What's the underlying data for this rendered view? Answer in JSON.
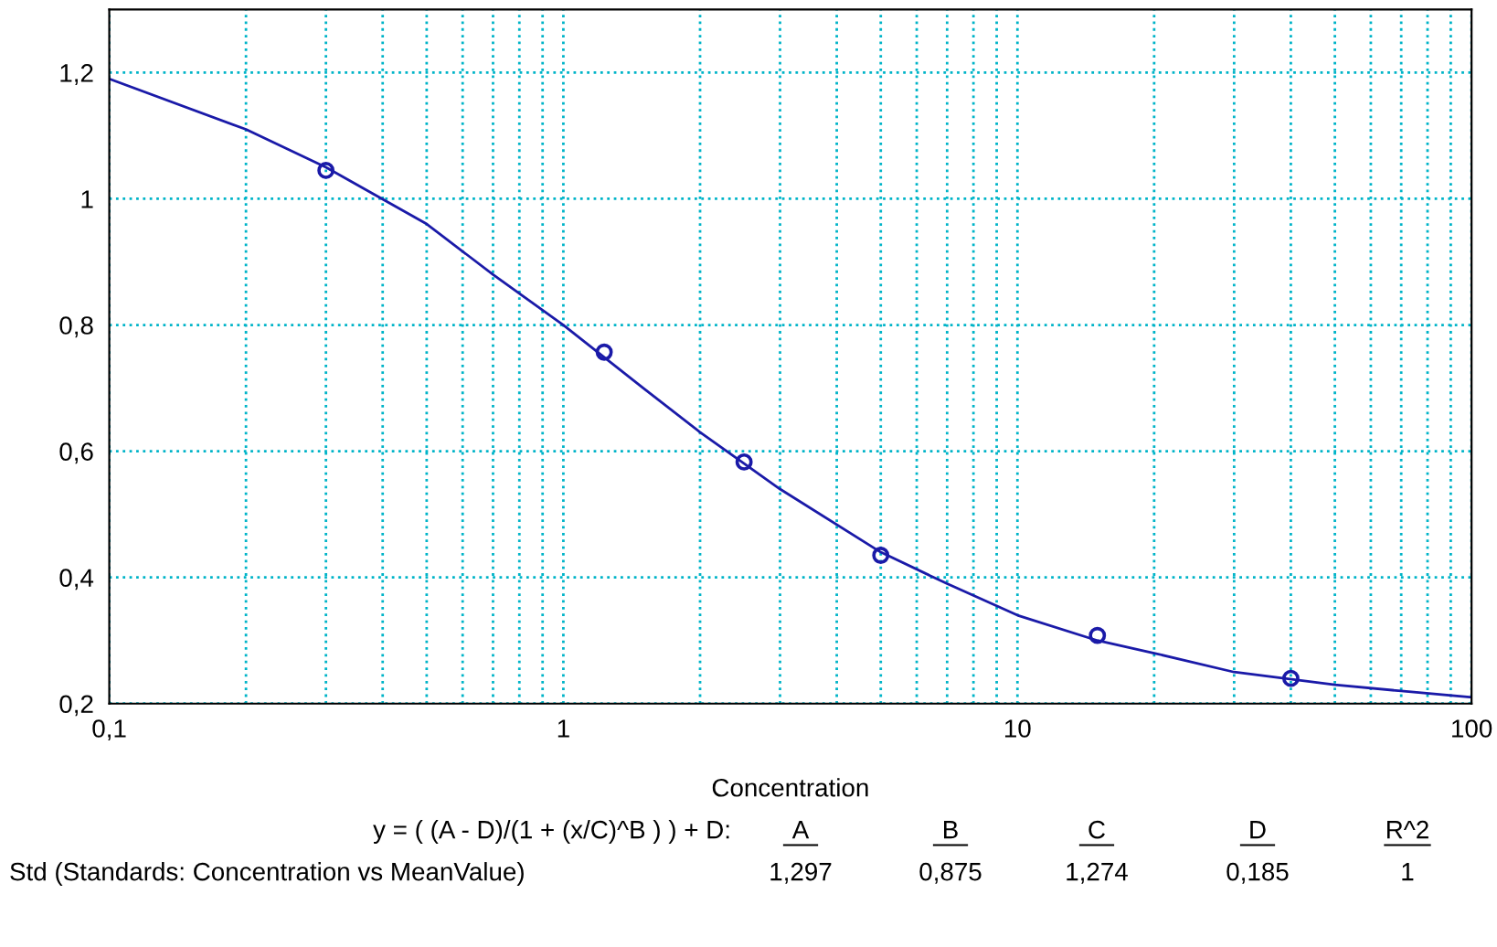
{
  "chart_data": {
    "type": "line",
    "xlabel": "Concentration",
    "log": "x",
    "xlim": [
      0.1,
      100
    ],
    "ylim": [
      0.2,
      1.3
    ],
    "xticks": [
      {
        "value": 0.1,
        "label": "0,1"
      },
      {
        "value": 0.2,
        "label": null
      },
      {
        "value": 0.3,
        "label": null
      },
      {
        "value": 0.4,
        "label": null
      },
      {
        "value": 0.5,
        "label": null
      },
      {
        "value": 0.6,
        "label": null
      },
      {
        "value": 0.7,
        "label": null
      },
      {
        "value": 0.8,
        "label": null
      },
      {
        "value": 0.9,
        "label": null
      },
      {
        "value": 1,
        "label": "1"
      },
      {
        "value": 2,
        "label": null
      },
      {
        "value": 3,
        "label": null
      },
      {
        "value": 4,
        "label": null
      },
      {
        "value": 5,
        "label": null
      },
      {
        "value": 6,
        "label": null
      },
      {
        "value": 7,
        "label": null
      },
      {
        "value": 8,
        "label": null
      },
      {
        "value": 9,
        "label": null
      },
      {
        "value": 10,
        "label": "10"
      },
      {
        "value": 20,
        "label": null
      },
      {
        "value": 30,
        "label": null
      },
      {
        "value": 40,
        "label": null
      },
      {
        "value": 50,
        "label": null
      },
      {
        "value": 60,
        "label": null
      },
      {
        "value": 70,
        "label": null
      },
      {
        "value": 80,
        "label": null
      },
      {
        "value": 90,
        "label": null
      },
      {
        "value": 100,
        "label": "100"
      }
    ],
    "yticks": [
      {
        "value": 0.2,
        "label": "0,2"
      },
      {
        "value": 0.4,
        "label": "0,4"
      },
      {
        "value": 0.6,
        "label": "0,6"
      },
      {
        "value": 0.8,
        "label": "0,8"
      },
      {
        "value": 1.0,
        "label": "1"
      },
      {
        "value": 1.2,
        "label": "1,2"
      }
    ],
    "grid": true,
    "series": [
      {
        "color": "#1a1aa8",
        "marker": "none",
        "line_style": "solid",
        "x": [
          0.1,
          0.2,
          0.3,
          0.5,
          0.7,
          1,
          1.5,
          2,
          3,
          5,
          7,
          10,
          15,
          20,
          30,
          50,
          70,
          100
        ],
        "values": [
          1.19,
          1.11,
          1.05,
          0.96,
          0.88,
          0.8,
          0.7,
          0.63,
          0.54,
          0.44,
          0.39,
          0.34,
          0.3,
          0.28,
          0.25,
          0.23,
          0.22,
          0.21
        ]
      },
      {
        "type": "scatter",
        "color": "#1a1aa8",
        "marker": "circle",
        "x": [
          0.3,
          1.23,
          2.5,
          5,
          15,
          40
        ],
        "values": [
          1.045,
          0.757,
          0.583,
          0.435,
          0.308,
          0.24
        ]
      }
    ],
    "annotations": [
      "y = ( (A - D)/(1 + (x/C)^B ) ) + D:",
      "A",
      "B",
      "C",
      "D",
      "R^2",
      "Std (Standards: Concentration vs MeanValue)",
      "1,297",
      "0,875",
      "1,274",
      "0,185",
      "1"
    ]
  }
}
